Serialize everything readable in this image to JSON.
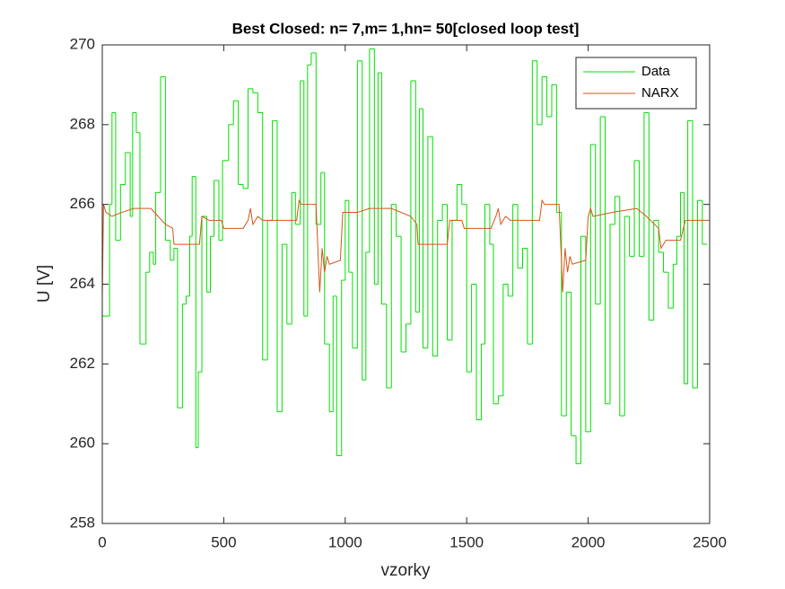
{
  "chart_data": {
    "type": "line",
    "title": "Best Closed: n= 7,m= 1,hn= 50[closed loop test]",
    "xlabel": "vzorky",
    "ylabel": "U [V]",
    "xlim": [
      0,
      2500
    ],
    "ylim": [
      258,
      270
    ],
    "xticks": [
      0,
      500,
      1000,
      1500,
      2000,
      2500
    ],
    "yticks": [
      258,
      260,
      262,
      264,
      266,
      268,
      270
    ],
    "legend": "upper right",
    "series": [
      {
        "name": "Data",
        "color": "#00e000",
        "drawstyle": "steps-post",
        "x": [
          0,
          30,
          40,
          55,
          75,
          95,
          115,
          125,
          140,
          155,
          180,
          195,
          210,
          220,
          240,
          260,
          280,
          295,
          310,
          330,
          345,
          360,
          370,
          385,
          395,
          410,
          430,
          445,
          460,
          480,
          495,
          520,
          540,
          560,
          580,
          600,
          620,
          640,
          660,
          680,
          700,
          720,
          740,
          760,
          780,
          795,
          815,
          830,
          845,
          860,
          880,
          900,
          915,
          935,
          950,
          965,
          985,
          1000,
          1015,
          1030,
          1050,
          1070,
          1085,
          1100,
          1120,
          1135,
          1150,
          1170,
          1190,
          1210,
          1230,
          1250,
          1270,
          1290,
          1305,
          1320,
          1340,
          1360,
          1380,
          1400,
          1420,
          1440,
          1460,
          1480,
          1500,
          1520,
          1540,
          1560,
          1575,
          1595,
          1610,
          1630,
          1650,
          1670,
          1690,
          1710,
          1730,
          1750,
          1770,
          1790,
          1810,
          1830,
          1850,
          1870,
          1890,
          1910,
          1930,
          1950,
          1970,
          1990,
          2010,
          2030,
          2050,
          2070,
          2090,
          2110,
          2130,
          2150,
          2170,
          2190,
          2210,
          2230,
          2250,
          2270,
          2290,
          2310,
          2330,
          2350,
          2365,
          2380,
          2395,
          2410,
          2430,
          2450,
          2470,
          2490
        ],
        "values": [
          263.2,
          266,
          268.3,
          265.1,
          266.5,
          267.3,
          265.7,
          268.3,
          267.8,
          262.5,
          264.3,
          264.8,
          264.5,
          266.3,
          269.2,
          265.1,
          264.6,
          264.9,
          260.9,
          263.5,
          263.7,
          265.2,
          266.7,
          259.9,
          261.8,
          265.7,
          263.8,
          265.2,
          266.6,
          265.1,
          267.1,
          268,
          268.6,
          266.5,
          266.4,
          268.9,
          268.8,
          268.3,
          262.1,
          265.6,
          268.1,
          260.8,
          265,
          263,
          266.3,
          265.5,
          269.1,
          263.2,
          269.5,
          269.8,
          265.5,
          266.8,
          262.5,
          260.8,
          263.7,
          259.7,
          264.1,
          266.1,
          264.3,
          262.4,
          269.6,
          261.6,
          264.8,
          269.9,
          264,
          269.3,
          263.5,
          261.4,
          266,
          265.2,
          262.3,
          263,
          269.1,
          263.3,
          268.4,
          262.4,
          267.7,
          262.2,
          265.6,
          266,
          262.6,
          265.6,
          266.5,
          266,
          261.8,
          264,
          260.6,
          262.5,
          266,
          265,
          261,
          261.2,
          264,
          263.7,
          266,
          264.4,
          264.9,
          262.5,
          269.6,
          268,
          269.2,
          268.2,
          269,
          265.8,
          260.7,
          263.8,
          260.2,
          259.5,
          265.2,
          260.3,
          267.5,
          263.5,
          268.2,
          261,
          265.5,
          266.2,
          260.7,
          265.7,
          264.7,
          267.1,
          264.7,
          268.3,
          263.1,
          265.6,
          264.8,
          264.3,
          263.4,
          264.5,
          265.2,
          266.3,
          261.5,
          268.1,
          261.4,
          266.1,
          265,
          265
        ]
      },
      {
        "name": "NARX",
        "color": "#d95319",
        "x": [
          0,
          5,
          15,
          40,
          80,
          130,
          200,
          230,
          260,
          290,
          295,
          400,
          410,
          440,
          490,
          500,
          580,
          600,
          610,
          620,
          640,
          660,
          800,
          810,
          820,
          880,
          890,
          895,
          905,
          915,
          925,
          935,
          980,
          990,
          1050,
          1100,
          1190,
          1270,
          1295,
          1300,
          1420,
          1430,
          1480,
          1490,
          1600,
          1620,
          1630,
          1640,
          1660,
          1680,
          1800,
          1810,
          1820,
          1880,
          1890,
          1895,
          1905,
          1915,
          1925,
          1935,
          1990,
          2000,
          2010,
          2020,
          2100,
          2200,
          2240,
          2290,
          2300,
          2320,
          2380,
          2400,
          2500
        ],
        "values": [
          263.6,
          266,
          265.8,
          265.7,
          265.8,
          265.9,
          265.9,
          265.7,
          265.5,
          265.4,
          265,
          265,
          265.7,
          265.6,
          265.6,
          265.4,
          265.4,
          265.6,
          265.9,
          265.5,
          265.7,
          265.6,
          265.6,
          266.1,
          266,
          266,
          264.5,
          263.8,
          264.9,
          264.3,
          264.7,
          264.5,
          264.6,
          265.8,
          265.8,
          265.9,
          265.9,
          265.7,
          265.5,
          265,
          265,
          265.6,
          265.6,
          265.4,
          265.4,
          265.7,
          265.9,
          265.5,
          265.7,
          265.6,
          265.6,
          266.1,
          266,
          266,
          264.6,
          263.8,
          264.9,
          264.3,
          264.7,
          264.5,
          264.6,
          265.7,
          265.9,
          265.7,
          265.8,
          265.9,
          265.7,
          265.4,
          264.9,
          265.1,
          265.1,
          265.6,
          265.6
        ]
      }
    ]
  }
}
